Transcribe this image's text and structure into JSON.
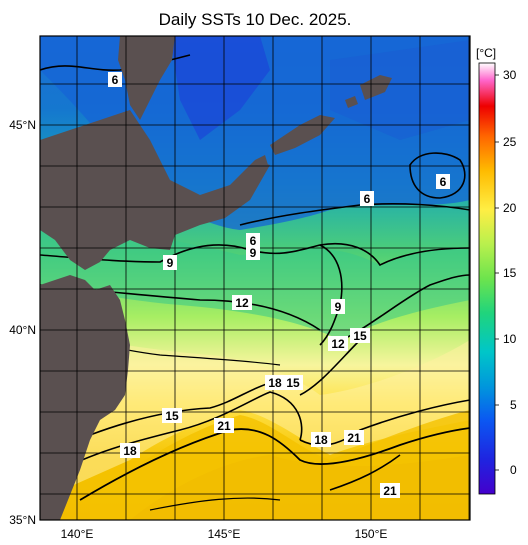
{
  "map": {
    "title": "Daily SSTs 10 Dec. 2025.",
    "lat_labels": [
      "45°N",
      "40°N",
      "35°N"
    ],
    "lon_labels": [
      "140°E",
      "145°E",
      "150°E"
    ],
    "contour_labels": [
      "6",
      "6",
      "6",
      "6",
      "9",
      "9",
      "9",
      "12",
      "12",
      "15",
      "15",
      "15",
      "18",
      "18",
      "18",
      "21",
      "21",
      "21"
    ]
  },
  "legend": {
    "unit": "[°C]",
    "ticks": [
      "30",
      "25",
      "20",
      "15",
      "10",
      "5",
      "0"
    ],
    "colors": [
      "#4400cc",
      "#0044ee",
      "#0099dd",
      "#00cccc",
      "#22cc66",
      "#88ee44",
      "#ffee44",
      "#ffaa00",
      "#ff5500",
      "#ee0000",
      "#ff66cc",
      "#ffffff"
    ]
  }
}
